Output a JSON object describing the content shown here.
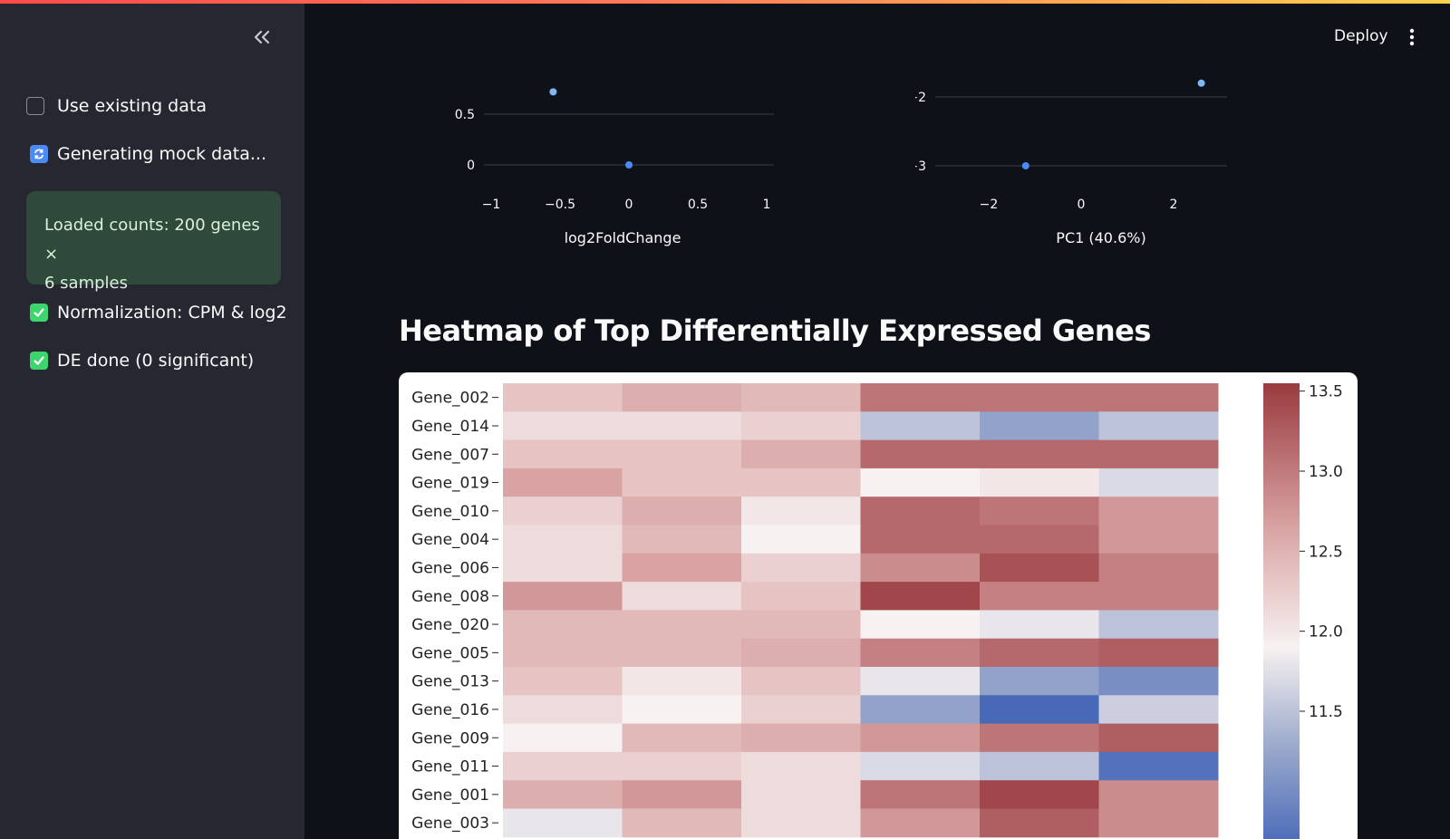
{
  "sidebar": {
    "collapse_icon": "double-chevron-left-icon",
    "use_existing_label": "Use existing data",
    "generating_label": "Generating mock data...",
    "loaded_text_1": "Loaded counts: 200 genes ×",
    "loaded_text_2": "6 samples",
    "normalization_label": "Normalization: CPM & log2",
    "de_label": "DE done (0 significant)"
  },
  "header": {
    "deploy_label": "Deploy",
    "menu_icon": "kebab-menu-icon"
  },
  "heading": "Heatmap of Top Differentially Expressed Genes",
  "colors": {
    "accent_check": "#3dd56d",
    "success_bg": "#2f4a3a",
    "sync_blue": "#4c8bf5"
  },
  "chart_data": [
    {
      "type": "scatter",
      "xlabel": "log2FoldChange",
      "x_ticks": [
        "−1",
        "−0.5",
        "0",
        "0.5",
        "1"
      ],
      "y_ticks": [
        "0.5",
        "0"
      ],
      "xlim": [
        -1,
        1
      ],
      "points": [
        {
          "x": -0.55,
          "y": 0.72
        },
        {
          "x": 0.0,
          "y": 0.0
        }
      ]
    },
    {
      "type": "scatter",
      "xlabel": "PC1 (40.6%)",
      "x_ticks": [
        "−2",
        "0",
        "2"
      ],
      "y_ticks": [
        "−2",
        "−3"
      ],
      "points": [
        {
          "x": 2.6,
          "y": -1.8
        },
        {
          "x": -1.2,
          "y": -3.0
        }
      ]
    },
    {
      "type": "heatmap",
      "rows": [
        "Gene_002",
        "Gene_014",
        "Gene_007",
        "Gene_019",
        "Gene_010",
        "Gene_004",
        "Gene_006",
        "Gene_008",
        "Gene_020",
        "Gene_005",
        "Gene_013",
        "Gene_016",
        "Gene_009",
        "Gene_011",
        "Gene_001",
        "Gene_003"
      ],
      "columns": 6,
      "values": [
        [
          12.4,
          12.6,
          12.5,
          13.1,
          13.1,
          13.1
        ],
        [
          12.2,
          12.2,
          12.3,
          11.6,
          11.3,
          11.6
        ],
        [
          12.4,
          12.4,
          12.6,
          13.2,
          13.2,
          13.2
        ],
        [
          12.7,
          12.4,
          12.4,
          12.0,
          12.1,
          11.8
        ],
        [
          12.3,
          12.6,
          12.1,
          13.2,
          13.1,
          12.8
        ],
        [
          12.2,
          12.5,
          12.0,
          13.2,
          13.2,
          12.8
        ],
        [
          12.2,
          12.7,
          12.3,
          12.9,
          13.4,
          13.0
        ],
        [
          12.8,
          12.2,
          12.4,
          13.5,
          13.0,
          13.0
        ],
        [
          12.5,
          12.5,
          12.5,
          12.0,
          11.9,
          11.6
        ],
        [
          12.5,
          12.5,
          12.6,
          13.0,
          13.2,
          13.3
        ],
        [
          12.4,
          12.1,
          12.4,
          11.9,
          11.3,
          11.1
        ],
        [
          12.2,
          12.0,
          12.3,
          11.3,
          10.7,
          11.7
        ],
        [
          12.0,
          12.5,
          12.6,
          12.8,
          13.1,
          13.3
        ],
        [
          12.3,
          12.3,
          12.2,
          11.8,
          11.6,
          10.8
        ],
        [
          12.6,
          12.8,
          12.2,
          13.1,
          13.5,
          12.9
        ],
        [
          11.9,
          12.5,
          12.2,
          12.8,
          13.3,
          12.9
        ]
      ],
      "colorbar_ticks": [
        "13.5",
        "13.0",
        "12.5",
        "12.0",
        "11.5"
      ],
      "vmin": 10.6,
      "vmax": 13.6
    }
  ]
}
